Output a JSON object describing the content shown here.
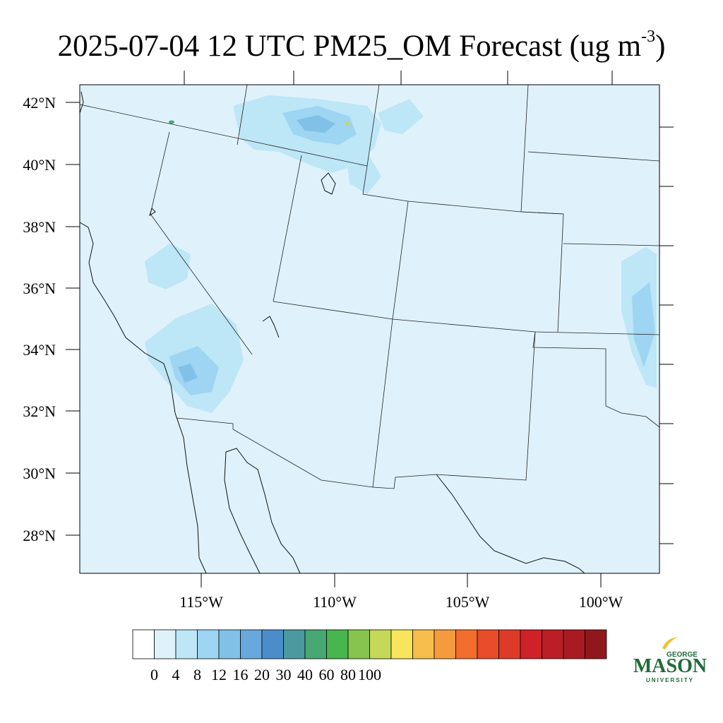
{
  "title": {
    "main": "2025-07-04 12 UTC PM25_OM Forecast (ug m",
    "sup": "-3",
    "close": ")"
  },
  "map": {
    "background_color": "#dff2fb",
    "lat_ticks": [
      "28°N",
      "30°N",
      "32°N",
      "34°N",
      "36°N",
      "38°N",
      "40°N",
      "42°N"
    ],
    "lon_ticks": [
      "115°W",
      "110°W",
      "105°W",
      "100°W"
    ]
  },
  "colorbar": {
    "colors": [
      "#ffffff",
      "#dff2fb",
      "#bde6f6",
      "#9dd5f2",
      "#82c1e7",
      "#69a8dc",
      "#4b8dcb",
      "#4a9a9f",
      "#48a873",
      "#47b64e",
      "#86c44e",
      "#c6d858",
      "#f7e55b",
      "#f7bd4d",
      "#f59b3d",
      "#f36d2d",
      "#e84c2b",
      "#dd3a29",
      "#cf2228",
      "#bb1e25",
      "#a81b22",
      "#8f181d"
    ],
    "labels": [
      "0",
      "4",
      "8",
      "12",
      "16",
      "20",
      "30",
      "40",
      "60",
      "80",
      "100"
    ]
  },
  "logo": {
    "line1": "GEORGE",
    "line2": "MASON",
    "line3": "UNIVERSITY",
    "color_green": "#1f6b3a",
    "color_gold": "#f3c02b"
  }
}
